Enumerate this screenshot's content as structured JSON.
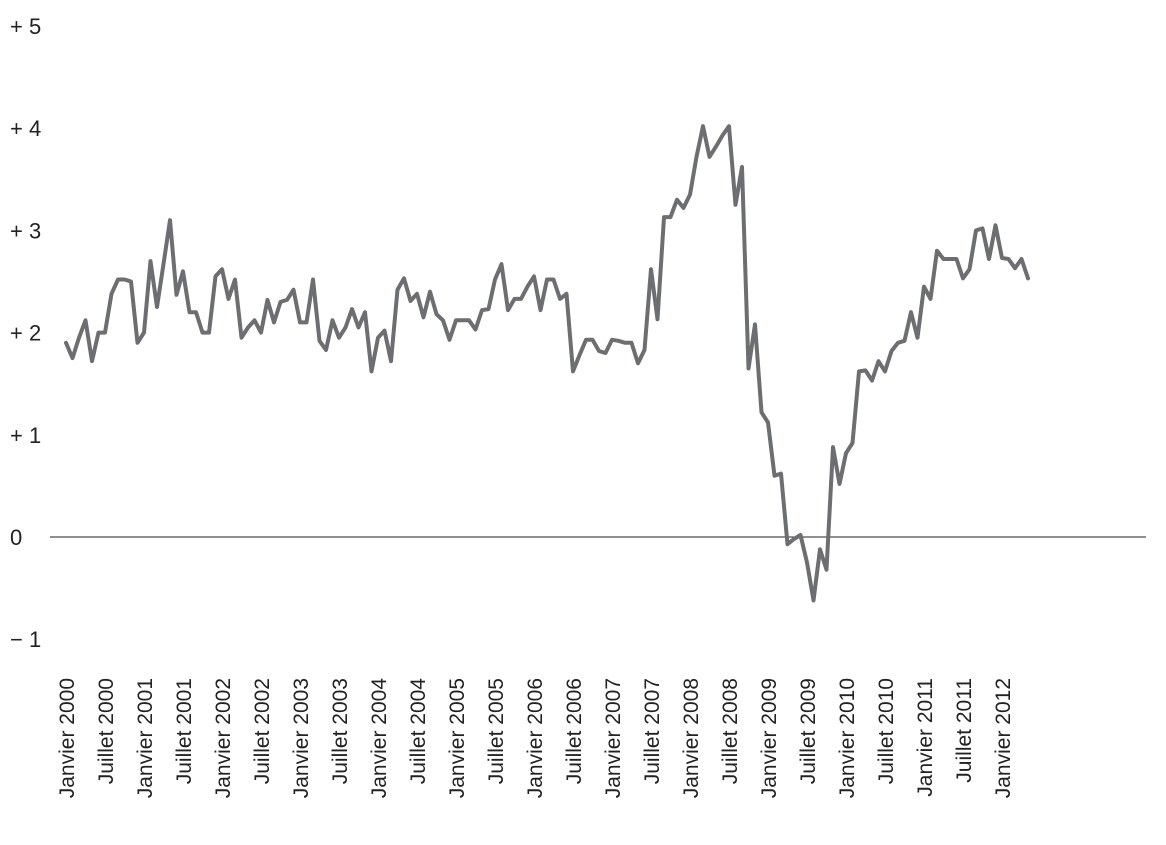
{
  "chart_data": {
    "type": "line",
    "title": "",
    "xlabel": "",
    "ylabel": "",
    "ylim": [
      -1,
      5
    ],
    "y_ticks": [
      {
        "value": 5,
        "label": "+ 5"
      },
      {
        "value": 4,
        "label": "+ 4"
      },
      {
        "value": 3,
        "label": "+ 3"
      },
      {
        "value": 2,
        "label": "+ 2"
      },
      {
        "value": 1,
        "label": "+ 1"
      },
      {
        "value": 0,
        "label": "0"
      },
      {
        "value": -1,
        "label": "− 1"
      }
    ],
    "x_tick_labels": [
      "Janvier 2000",
      "Juillet 2000",
      "Janvier 2001",
      "Juillet 2001",
      "Janvier 2002",
      "Juillet 2002",
      "Janvier 2003",
      "Juillet 2003",
      "Janvier 2004",
      "Juillet 2004",
      "Janvier 2005",
      "Juillet 2005",
      "Janvier 2006",
      "Juillet 2006",
      "Janvier 2007",
      "Juillet 2007",
      "Janvier 2008",
      "Juillet 2008",
      "Janvier 2009",
      "Juillet 2009",
      "Janvier 2010",
      "Juillet 2010",
      "Janvier 2011",
      "Juillet 2011",
      "Janvier 2012"
    ],
    "grid": false,
    "zero_line": true,
    "series": [
      {
        "color": "#6d6e71",
        "start": "2000-01",
        "values": [
          1.9,
          1.75,
          1.95,
          2.12,
          1.72,
          2.0,
          2.0,
          2.38,
          2.52,
          2.52,
          2.5,
          1.9,
          2.0,
          2.7,
          2.25,
          2.67,
          3.1,
          2.37,
          2.6,
          2.2,
          2.2,
          2.0,
          2.0,
          2.55,
          2.62,
          2.33,
          2.52,
          1.95,
          2.05,
          2.12,
          2.0,
          2.32,
          2.1,
          2.3,
          2.32,
          2.42,
          2.1,
          2.1,
          2.52,
          1.92,
          1.83,
          2.12,
          1.95,
          2.05,
          2.23,
          2.05,
          2.2,
          1.62,
          1.95,
          2.02,
          1.72,
          2.42,
          2.53,
          2.31,
          2.38,
          2.15,
          2.4,
          2.18,
          2.12,
          1.93,
          2.12,
          2.12,
          2.12,
          2.03,
          2.22,
          2.23,
          2.52,
          2.67,
          2.22,
          2.33,
          2.33,
          2.45,
          2.55,
          2.22,
          2.52,
          2.52,
          2.33,
          2.38,
          1.62,
          1.78,
          1.93,
          1.93,
          1.82,
          1.8,
          1.93,
          1.92,
          1.9,
          1.9,
          1.7,
          1.83,
          2.62,
          2.13,
          3.13,
          3.13,
          3.3,
          3.22,
          3.35,
          3.72,
          4.02,
          3.72,
          3.82,
          3.93,
          4.02,
          3.25,
          3.62,
          1.65,
          2.08,
          1.22,
          1.12,
          0.6,
          0.62,
          -0.07,
          -0.02,
          0.02,
          -0.25,
          -0.62,
          -0.12,
          -0.32,
          0.88,
          0.52,
          0.82,
          0.92,
          1.62,
          1.63,
          1.53,
          1.72,
          1.62,
          1.82,
          1.9,
          1.92,
          2.2,
          1.95,
          2.45,
          2.33,
          2.8,
          2.72,
          2.72,
          2.72,
          2.53,
          2.62,
          3.0,
          3.02,
          2.72,
          3.05,
          2.73,
          2.72,
          2.63,
          2.72,
          2.53
        ]
      }
    ]
  }
}
